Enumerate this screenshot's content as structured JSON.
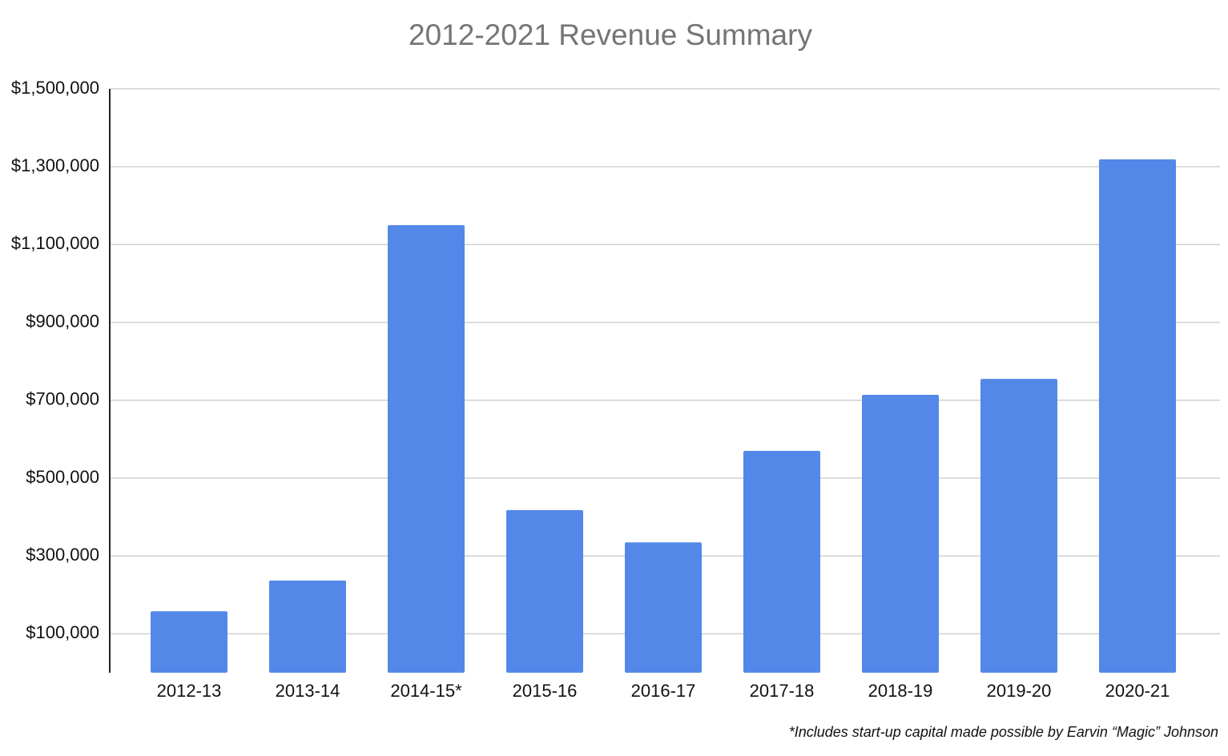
{
  "chart_data": {
    "type": "bar",
    "title": "2012-2021 Revenue Summary",
    "categories": [
      "2012-13",
      "2013-14",
      "2014-15*",
      "2015-16",
      "2016-17",
      "2017-18",
      "2018-19",
      "2019-20",
      "2020-21"
    ],
    "values": [
      158000,
      237000,
      1150000,
      418000,
      335000,
      570000,
      714000,
      755000,
      1319000
    ],
    "color": "#5388e8",
    "ylim": [
      0,
      1500000
    ],
    "yticks": [
      {
        "value": 100000,
        "label": "$100,000"
      },
      {
        "value": 300000,
        "label": "$300,000"
      },
      {
        "value": 500000,
        "label": "$500,000"
      },
      {
        "value": 700000,
        "label": "$700,000"
      },
      {
        "value": 900000,
        "label": "$900,000"
      },
      {
        "value": 1100000,
        "label": "$1,100,000"
      },
      {
        "value": 1300000,
        "label": "$1,300,000"
      },
      {
        "value": 1500000,
        "label": "$1,500,000"
      }
    ],
    "grid": true,
    "annotation": "*Includes start-up capital made possible by Earvin “Magic” Johnson"
  }
}
